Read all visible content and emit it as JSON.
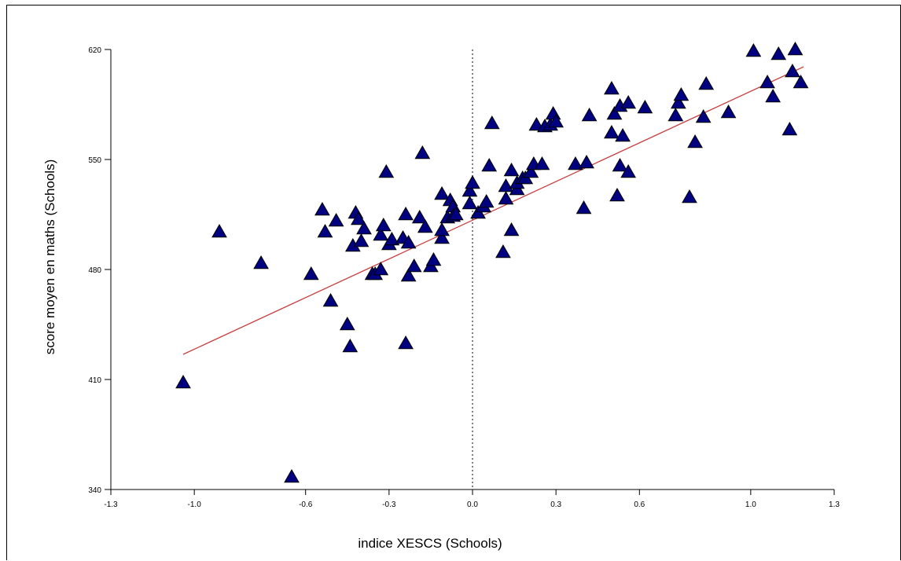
{
  "chart_data": {
    "type": "scatter",
    "xlabel": "indice XESCS (Schools)",
    "ylabel": "score moyen en maths (Schools)",
    "xlim": [
      -1.3,
      1.3
    ],
    "ylim": [
      340,
      620
    ],
    "xticks": [
      "-1.3",
      "-1.0",
      "-0.6",
      "-0.3",
      "0.0",
      "0.3",
      "0.6",
      "1.0",
      "1.3"
    ],
    "yticks": [
      "340",
      "410",
      "480",
      "550",
      "620"
    ],
    "reference_line_x": 0.0,
    "fit_line": {
      "from": [
        -1.04,
        426
      ],
      "to": [
        1.19,
        609
      ]
    },
    "marker": "triangle",
    "colors": {
      "marker": "#000080",
      "fit_line": "#c84040",
      "reference_line": "#808080"
    },
    "points": [
      [
        -1.04,
        408
      ],
      [
        -0.91,
        504
      ],
      [
        -0.76,
        484
      ],
      [
        -0.65,
        348
      ],
      [
        -0.58,
        477
      ],
      [
        -0.54,
        518
      ],
      [
        -0.53,
        504
      ],
      [
        -0.51,
        460
      ],
      [
        -0.49,
        511
      ],
      [
        -0.45,
        445
      ],
      [
        -0.44,
        431
      ],
      [
        -0.43,
        495
      ],
      [
        -0.42,
        516
      ],
      [
        -0.41,
        512
      ],
      [
        -0.4,
        498
      ],
      [
        -0.39,
        506
      ],
      [
        -0.36,
        477
      ],
      [
        -0.35,
        477
      ],
      [
        -0.33,
        480
      ],
      [
        -0.33,
        502
      ],
      [
        -0.32,
        508
      ],
      [
        -0.31,
        542
      ],
      [
        -0.3,
        496
      ],
      [
        -0.29,
        499
      ],
      [
        -0.25,
        500
      ],
      [
        -0.24,
        433
      ],
      [
        -0.24,
        515
      ],
      [
        -0.23,
        497
      ],
      [
        -0.23,
        476
      ],
      [
        -0.21,
        482
      ],
      [
        -0.19,
        513
      ],
      [
        -0.18,
        554
      ],
      [
        -0.17,
        507
      ],
      [
        -0.15,
        482
      ],
      [
        -0.14,
        486
      ],
      [
        -0.11,
        500
      ],
      [
        -0.11,
        505
      ],
      [
        -0.11,
        528
      ],
      [
        -0.09,
        513
      ],
      [
        -0.08,
        524
      ],
      [
        -0.07,
        520
      ],
      [
        -0.07,
        514
      ],
      [
        -0.06,
        515
      ],
      [
        -0.01,
        530
      ],
      [
        -0.01,
        522
      ],
      [
        0.0,
        535
      ],
      [
        0.02,
        516
      ],
      [
        0.04,
        520
      ],
      [
        0.05,
        523
      ],
      [
        0.06,
        546
      ],
      [
        0.07,
        573
      ],
      [
        0.11,
        491
      ],
      [
        0.12,
        533
      ],
      [
        0.12,
        525
      ],
      [
        0.14,
        505
      ],
      [
        0.14,
        543
      ],
      [
        0.16,
        531
      ],
      [
        0.16,
        535
      ],
      [
        0.18,
        538
      ],
      [
        0.19,
        538
      ],
      [
        0.21,
        542
      ],
      [
        0.22,
        547
      ],
      [
        0.23,
        572
      ],
      [
        0.25,
        547
      ],
      [
        0.26,
        571
      ],
      [
        0.28,
        572
      ],
      [
        0.29,
        579
      ],
      [
        0.3,
        574
      ],
      [
        0.37,
        547
      ],
      [
        0.4,
        519
      ],
      [
        0.41,
        548
      ],
      [
        0.42,
        578
      ],
      [
        0.5,
        595
      ],
      [
        0.5,
        567
      ],
      [
        0.51,
        579
      ],
      [
        0.52,
        527
      ],
      [
        0.53,
        546
      ],
      [
        0.53,
        584
      ],
      [
        0.54,
        565
      ],
      [
        0.56,
        586
      ],
      [
        0.56,
        542
      ],
      [
        0.62,
        583
      ],
      [
        0.73,
        578
      ],
      [
        0.74,
        586
      ],
      [
        0.75,
        591
      ],
      [
        0.78,
        526
      ],
      [
        0.8,
        561
      ],
      [
        0.83,
        577
      ],
      [
        0.84,
        598
      ],
      [
        0.92,
        580
      ],
      [
        1.01,
        619
      ],
      [
        1.06,
        599
      ],
      [
        1.08,
        590
      ],
      [
        1.1,
        617
      ],
      [
        1.14,
        569
      ],
      [
        1.15,
        606
      ],
      [
        1.16,
        620
      ],
      [
        1.18,
        599
      ]
    ]
  }
}
